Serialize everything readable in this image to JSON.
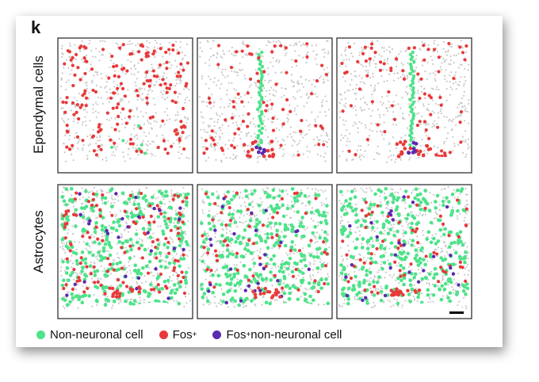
{
  "figure": {
    "panel_letter": "k",
    "row_labels": [
      "Ependymal cells",
      "Astrocytes"
    ],
    "legend": [
      {
        "label": "Non-neuronal cell",
        "sup": "",
        "suffix": "",
        "color": "#4ee38a",
        "icon": "green-dot"
      },
      {
        "label": "Fos",
        "sup": "+",
        "suffix": "",
        "color": "#e8393a",
        "icon": "red-dot"
      },
      {
        "label": "Fos",
        "sup": "+",
        "suffix": " non-neuronal cell",
        "color": "#5a2ab0",
        "icon": "purple-dot"
      }
    ],
    "colors": {
      "background_cells": "#c9c9c9",
      "non_neuronal": "#4ee38a",
      "fos": "#e8393a",
      "fos_non_neuronal": "#5a2ab0",
      "frame": "#222222",
      "scale_bar": "#000000"
    }
  }
}
